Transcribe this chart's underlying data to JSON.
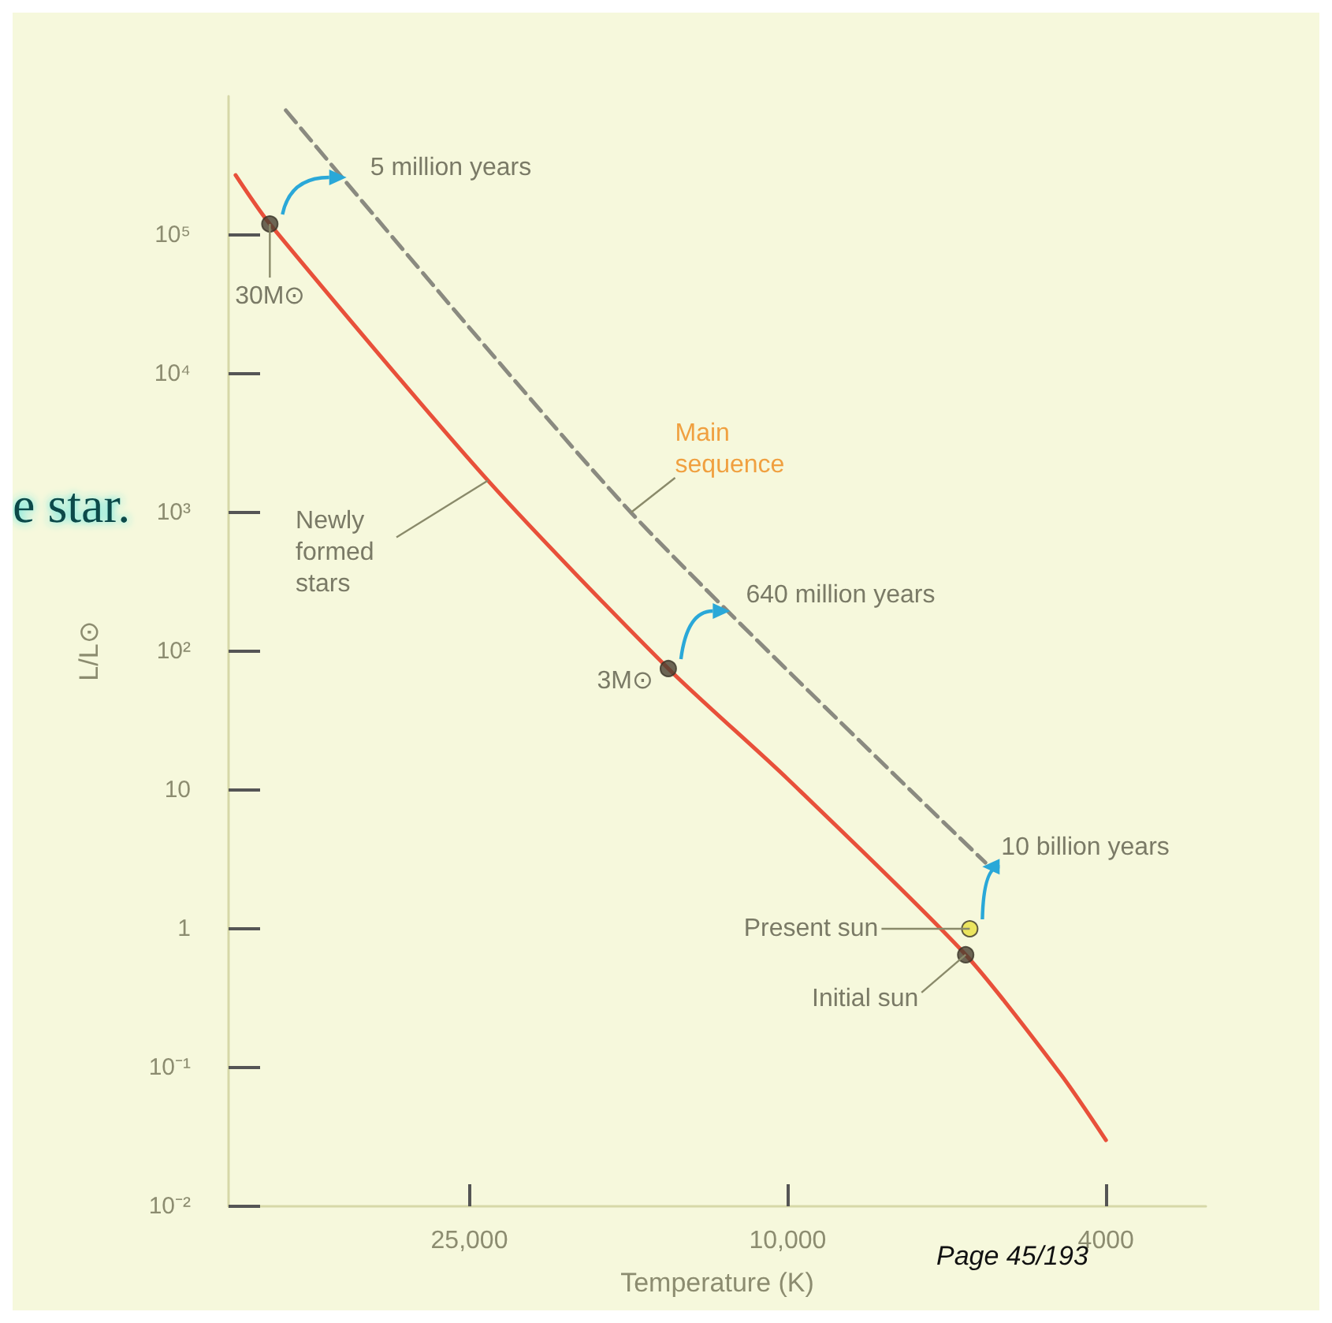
{
  "chart_data": {
    "type": "line",
    "xlabel": "Temperature (K)",
    "ylabel": "L/L⊙",
    "log": "xy",
    "grid": false,
    "xlim": [
      50000,
      3000
    ],
    "xticks": [
      {
        "value": 25000,
        "label": "25,000"
      },
      {
        "value": 10000,
        "label": "10,000"
      },
      4000
    ],
    "ylim": [
      0.01,
      1000000
    ],
    "yticks": [
      {
        "value": 0.01,
        "label": "10⁻²"
      },
      {
        "value": 0.1,
        "label": "10⁻¹"
      },
      1,
      10,
      {
        "value": 100,
        "label": "10²"
      },
      {
        "value": 1000,
        "label": "10³"
      },
      {
        "value": 10000,
        "label": "10⁴"
      },
      {
        "value": 100000,
        "label": "10⁵"
      }
    ],
    "series": [
      {
        "color": "#e8503a",
        "marker": "none",
        "line_style": "solid",
        "x": [
          49000,
          44400,
          23700,
          14100,
          10000,
          5990,
          4560,
          4000
        ],
        "values": [
          270000,
          120000,
          1700,
          75,
          12,
          0.65,
          0.09,
          0.03
        ]
      },
      {
        "color": "#8a8a80",
        "marker": "none",
        "line_style": "dashed",
        "x": [
          42400,
          15700,
          5660
        ],
        "values": [
          790000,
          1000,
          3
        ]
      },
      {
        "type": "scatter",
        "marker": "circle",
        "x": [
          44400,
          14100,
          5920,
          5990
        ],
        "values": [
          120000,
          75,
          1,
          0.65
        ],
        "colors": [
          "#4a4032",
          "#4a4032",
          "#e8e040",
          "#4a4032"
        ]
      }
    ],
    "annotations": [
      {
        "text": "5 million years",
        "x": 35600,
        "y": 260000
      },
      {
        "text": "640 million years",
        "x": 11800,
        "y": 195
      },
      {
        "text": "10 billion years",
        "x": 5710,
        "y": 2.8
      },
      {
        "text": "Initial sun",
        "x": 5990,
        "y": 0.65
      },
      {
        "text": "Present sun",
        "x": 5920,
        "y": 1
      },
      {
        "text": "30M⊙",
        "x": 44400,
        "y": 120000
      },
      {
        "text": "3M⊙",
        "x": 14100,
        "y": 75
      },
      {
        "text": "Newly formed stars",
        "x": 23700,
        "y": 1700
      },
      {
        "text": "Main sequence",
        "x": 15700,
        "y": 1000
      },
      "e star.",
      "Page 45/193"
    ]
  }
}
